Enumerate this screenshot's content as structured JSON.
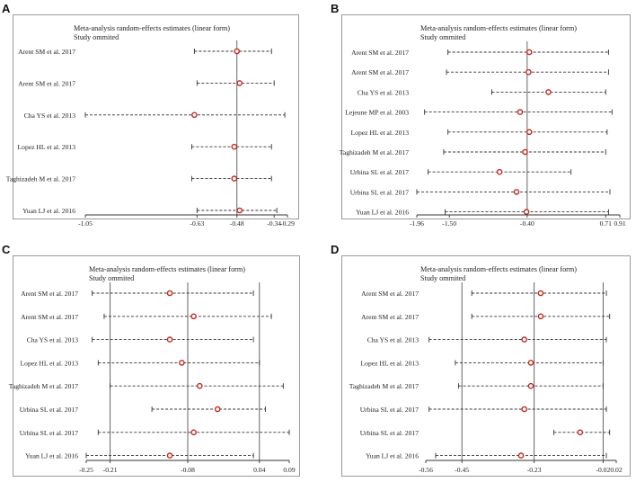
{
  "chart_data": [
    {
      "panel": "A",
      "type": "forest",
      "title": "Meta-analysis random-effects estimates (linear form)",
      "subtitle": "Study ommited",
      "xlim": [
        -1.05,
        -0.29
      ],
      "ref_line": -0.48,
      "ticks": [
        {
          "v": -1.05,
          "label": "-1.05"
        },
        {
          "v": -0.63,
          "label": "-0.63"
        },
        {
          "v": -0.48,
          "label": "-0.48"
        },
        {
          "v": -0.34,
          "label": "-0.34"
        },
        {
          "v": -0.29,
          "label": "-0.29"
        }
      ],
      "studies": [
        {
          "label": "Arent SM et al. 2017",
          "est": -0.48,
          "lo": -0.64,
          "hi": -0.35
        },
        {
          "label": "Arent SM et al. 2017",
          "est": -0.47,
          "lo": -0.63,
          "hi": -0.34
        },
        {
          "label": "Cha YS et al. 2013",
          "est": -0.64,
          "lo": -1.05,
          "hi": -0.3
        },
        {
          "label": "Lopez HL et al. 2013",
          "est": -0.49,
          "lo": -0.65,
          "hi": -0.35
        },
        {
          "label": "Taghizadeh M et al. 2017",
          "est": -0.49,
          "lo": -0.65,
          "hi": -0.35
        },
        {
          "label": "Yuan LJ et al.  2016",
          "est": -0.47,
          "lo": -0.63,
          "hi": -0.33
        }
      ]
    },
    {
      "panel": "B",
      "type": "forest",
      "title": "Meta-analysis random-effects estimates (linear form)",
      "subtitle": "Study ommited",
      "xlim": [
        -1.96,
        0.91
      ],
      "ref_line": -0.4,
      "ticks": [
        {
          "v": -1.96,
          "label": "-1.96"
        },
        {
          "v": -1.5,
          "label": "-1.50"
        },
        {
          "v": -0.4,
          "label": "-0.40"
        },
        {
          "v": 0.71,
          "label": "0.71"
        },
        {
          "v": 0.91,
          "label": "0.91"
        }
      ],
      "studies": [
        {
          "label": "Arent SM et al. 2017",
          "est": -0.37,
          "lo": -1.52,
          "hi": 0.75
        },
        {
          "label": "Arent SM et al. 2017",
          "est": -0.38,
          "lo": -1.54,
          "hi": 0.75
        },
        {
          "label": "Cha YS et al. 2013",
          "est": -0.1,
          "lo": -0.9,
          "hi": 0.71
        },
        {
          "label": "Lejeune MP et al.  2003",
          "est": -0.5,
          "lo": -1.85,
          "hi": 0.8
        },
        {
          "label": "Lopez HL et al. 2013",
          "est": -0.37,
          "lo": -1.52,
          "hi": 0.73
        },
        {
          "label": "Taghizadeh M et al. 2017",
          "est": -0.43,
          "lo": -1.58,
          "hi": 0.71
        },
        {
          "label": "Urbina SL et al. 2017",
          "est": -0.79,
          "lo": -1.8,
          "hi": 0.22
        },
        {
          "label": "Urbina SL et al. 2017",
          "est": -0.55,
          "lo": -1.96,
          "hi": 0.77
        },
        {
          "label": "Yuan LJ et al.  2016",
          "est": -0.41,
          "lo": -1.56,
          "hi": 0.75
        }
      ]
    },
    {
      "panel": "C",
      "type": "forest",
      "title": "Meta-analysis random-effects estimates (linear form)",
      "subtitle": "Study ommited",
      "xlim": [
        -0.25,
        0.09
      ],
      "ref_line": -0.08,
      "extra_lines": [
        -0.21,
        0.04
      ],
      "ticks": [
        {
          "v": -0.25,
          "label": "-0.25"
        },
        {
          "v": -0.21,
          "label": "-0.21"
        },
        {
          "v": -0.08,
          "label": "-0.08"
        },
        {
          "v": 0.04,
          "label": "0.04"
        },
        {
          "v": 0.09,
          "label": "0.09"
        }
      ],
      "studies": [
        {
          "label": "Arent SM et al. 2017",
          "est": -0.11,
          "lo": -0.24,
          "hi": 0.03
        },
        {
          "label": "Arent SM et al. 2017",
          "est": -0.07,
          "lo": -0.22,
          "hi": 0.06
        },
        {
          "label": "Cha YS et al. 2013",
          "est": -0.11,
          "lo": -0.24,
          "hi": 0.03
        },
        {
          "label": "Lopez HL et al. 2013",
          "est": -0.09,
          "lo": -0.23,
          "hi": 0.04
        },
        {
          "label": "Taghizadeh M et al. 2017",
          "est": -0.06,
          "lo": -0.21,
          "hi": 0.08
        },
        {
          "label": "Urbina SL et al. 2017",
          "est": -0.03,
          "lo": -0.14,
          "hi": 0.05
        },
        {
          "label": "Urbina SL et al. 2017",
          "est": -0.07,
          "lo": -0.23,
          "hi": 0.09
        },
        {
          "label": "Yuan LJ et al.  2016",
          "est": -0.11,
          "lo": -0.25,
          "hi": 0.03
        }
      ]
    },
    {
      "panel": "D",
      "type": "forest",
      "title": "Meta-analysis random-effects estimates (linear form)",
      "subtitle": "Study ommited",
      "xlim": [
        -0.56,
        0.02
      ],
      "ref_line": -0.23,
      "extra_lines": [
        -0.45,
        -0.02
      ],
      "ticks": [
        {
          "v": -0.56,
          "label": "-0.56"
        },
        {
          "v": -0.45,
          "label": "-0.45"
        },
        {
          "v": -0.23,
          "label": "-0.23"
        },
        {
          "v": -0.02,
          "label": "-0.02"
        },
        {
          "v": 0.02,
          "label": "0.02"
        }
      ],
      "studies": [
        {
          "label": "Arent SM et al. 2017",
          "est": -0.21,
          "lo": -0.42,
          "hi": -0.01
        },
        {
          "label": "Arent SM et al. 2017",
          "est": -0.21,
          "lo": -0.42,
          "hi": -0.0
        },
        {
          "label": "Cha YS et al. 2013",
          "est": -0.26,
          "lo": -0.55,
          "hi": -0.01
        },
        {
          "label": "Lopez HL et al. 2013",
          "est": -0.24,
          "lo": -0.47,
          "hi": -0.02
        },
        {
          "label": "Taghizadeh M et al. 2017",
          "est": -0.24,
          "lo": -0.46,
          "hi": -0.02
        },
        {
          "label": "Urbina SL et al. 2017",
          "est": -0.26,
          "lo": -0.55,
          "hi": -0.01
        },
        {
          "label": "Urbina SL et al. 2017",
          "est": -0.09,
          "lo": -0.17,
          "hi": 0.0
        },
        {
          "label": "Yuan LJ et al.  2016",
          "est": -0.27,
          "lo": -0.53,
          "hi": -0.01
        }
      ]
    }
  ],
  "style": {
    "marker_color": "#c0281e",
    "line_color": "#333333",
    "ref_color": "#555555",
    "box_border": "#9a9a9a"
  }
}
